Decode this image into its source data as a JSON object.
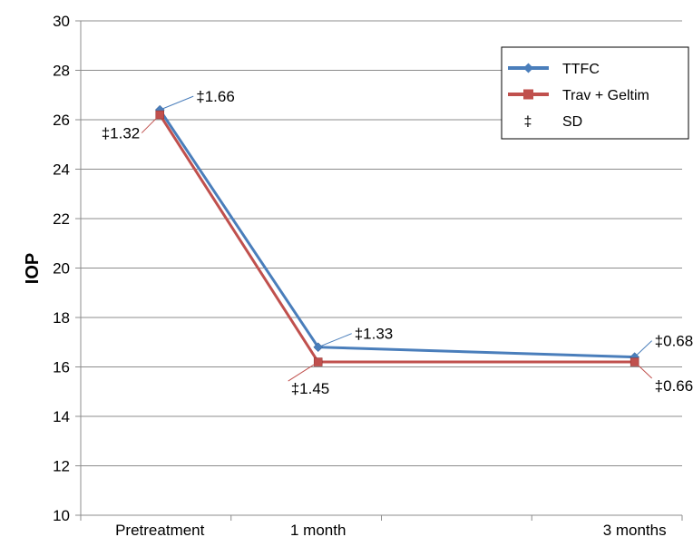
{
  "chart_data": {
    "type": "line",
    "ylabel": "IOP",
    "xlabel": "",
    "ylim": [
      10,
      30
    ],
    "ytick_step": 2,
    "grid": true,
    "legend_position": "top-right",
    "categories": [
      "Pretreatment",
      "1 month",
      "3 months"
    ],
    "x_positions": [
      0,
      1,
      3
    ],
    "x_range": [
      -0.5,
      3.3
    ],
    "series": [
      {
        "name": "TTFC",
        "color": "#4A7EBB",
        "marker": "diamond",
        "values": [
          26.4,
          16.8,
          16.4
        ],
        "sd_labels": [
          "‡1.66",
          "‡1.33",
          "‡0.68"
        ]
      },
      {
        "name": "Trav + Geltim",
        "color": "#C0504D",
        "marker": "square",
        "values": [
          26.2,
          16.2,
          16.2
        ],
        "sd_labels": [
          "‡1.32",
          "‡1.45",
          "‡0.66"
        ]
      }
    ],
    "legend_extra": {
      "symbol": "‡",
      "label": "SD"
    }
  }
}
